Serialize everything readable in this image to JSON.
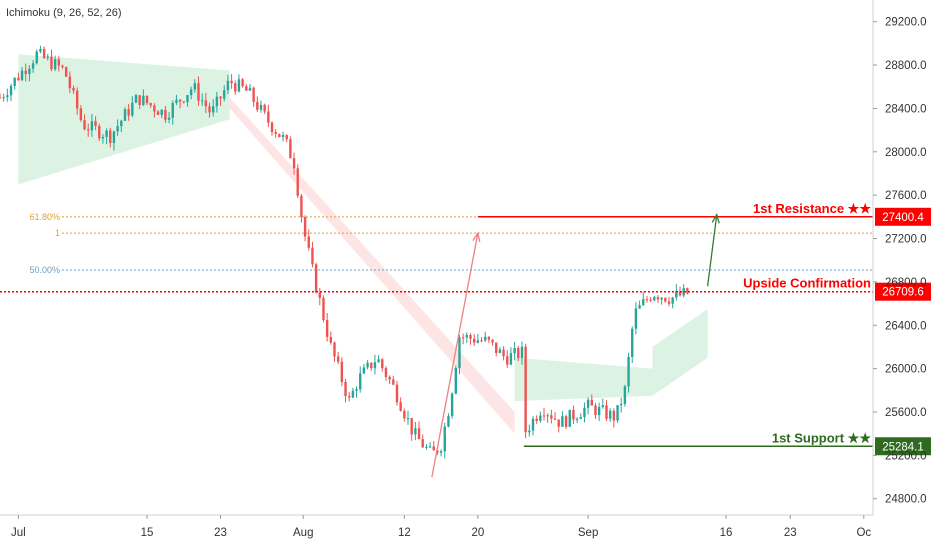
{
  "indicator": {
    "label": "Ichimoku (9, 26, 52, 26)"
  },
  "colors": {
    "up": "#26a69a",
    "down": "#ef5350",
    "resistance": "#ff0000",
    "support": "#2e6b1f",
    "cloud_bull": "#d6f0de",
    "cloud_bear": "#fde0e0",
    "fib": "#e0a030",
    "fib50": "#6aa0c8",
    "arrow_red": "#f08080",
    "arrow_green": "#2e7d32"
  },
  "chart_data": {
    "type": "candlestick",
    "y_axis": {
      "ylim": [
        24650,
        29400
      ],
      "ticks": [
        29200,
        28800,
        28400,
        28000,
        27600,
        27200,
        26800,
        26400,
        26000,
        25600,
        25200,
        24800
      ],
      "tick_labels": [
        "29200.0",
        "28800.0",
        "28400.0",
        "28000.0",
        "27600.0",
        "27200.0",
        "26800.0",
        "26400.0",
        "26000.0",
        "25600.0",
        "25200.0",
        "24800.0"
      ]
    },
    "x_axis": {
      "start": "2023-06-29",
      "end": "2023-10-02",
      "ticks": [
        {
          "date": "2023-07-01",
          "label": "Jul"
        },
        {
          "date": "2023-07-15",
          "label": "15"
        },
        {
          "date": "2023-07-23",
          "label": "23"
        },
        {
          "date": "2023-08-01",
          "label": "Aug"
        },
        {
          "date": "2023-08-12",
          "label": "12"
        },
        {
          "date": "2023-08-20",
          "label": "20"
        },
        {
          "date": "2023-09-01",
          "label": "Sep"
        },
        {
          "date": "2023-09-16",
          "label": "16"
        },
        {
          "date": "2023-09-23",
          "label": "23"
        },
        {
          "date": "2023-10-01",
          "label": "Oc"
        }
      ]
    },
    "price_path": [
      {
        "date": "2023-06-29",
        "price": 28500
      },
      {
        "date": "2023-07-03",
        "price": 28900
      },
      {
        "date": "2023-07-06",
        "price": 28750
      },
      {
        "date": "2023-07-08",
        "price": 28250
      },
      {
        "date": "2023-07-11",
        "price": 28150
      },
      {
        "date": "2023-07-14",
        "price": 28500
      },
      {
        "date": "2023-07-17",
        "price": 28350
      },
      {
        "date": "2023-07-20",
        "price": 28600
      },
      {
        "date": "2023-07-22",
        "price": 28350
      },
      {
        "date": "2023-07-24",
        "price": 28650
      },
      {
        "date": "2023-07-26",
        "price": 28550
      },
      {
        "date": "2023-07-28",
        "price": 28300
      },
      {
        "date": "2023-07-30",
        "price": 28100
      },
      {
        "date": "2023-07-31",
        "price": 27900
      },
      {
        "date": "2023-08-01",
        "price": 27300
      },
      {
        "date": "2023-08-02",
        "price": 26900
      },
      {
        "date": "2023-08-04",
        "price": 26200
      },
      {
        "date": "2023-08-06",
        "price": 25700
      },
      {
        "date": "2023-08-07",
        "price": 25900
      },
      {
        "date": "2023-08-09",
        "price": 26100
      },
      {
        "date": "2023-08-11",
        "price": 25800
      },
      {
        "date": "2023-08-13",
        "price": 25400
      },
      {
        "date": "2023-08-15",
        "price": 25200
      },
      {
        "date": "2023-08-16",
        "price": 25300
      },
      {
        "date": "2023-08-17",
        "price": 25700
      },
      {
        "date": "2023-08-18",
        "price": 26300
      },
      {
        "date": "2023-08-21",
        "price": 26250
      },
      {
        "date": "2023-08-23",
        "price": 26100
      },
      {
        "date": "2023-08-25",
        "price": 26150
      },
      {
        "date": "2023-08-25",
        "price": 25400
      },
      {
        "date": "2023-08-27",
        "price": 25650
      },
      {
        "date": "2023-08-29",
        "price": 25500
      },
      {
        "date": "2023-09-01",
        "price": 25650
      },
      {
        "date": "2023-09-04",
        "price": 25550
      },
      {
        "date": "2023-09-05",
        "price": 25800
      },
      {
        "date": "2023-09-06",
        "price": 26500
      },
      {
        "date": "2023-09-08",
        "price": 26700
      },
      {
        "date": "2023-09-10",
        "price": 26650
      },
      {
        "date": "2023-09-12",
        "price": 26700
      }
    ],
    "ichimoku_cloud": [
      {
        "start": "2023-07-01",
        "end": "2023-07-24",
        "top": [
          28900,
          28750
        ],
        "bottom": [
          27700,
          28300
        ],
        "trend": "bull"
      },
      {
        "start": "2023-07-24",
        "end": "2023-08-24",
        "top": [
          28500,
          25600
        ],
        "bottom": [
          28400,
          25400
        ],
        "trend": "bear"
      },
      {
        "start": "2023-08-24",
        "end": "2023-09-08",
        "top": [
          26100,
          26000
        ],
        "bottom": [
          25700,
          25750
        ],
        "trend": "bull"
      },
      {
        "start": "2023-09-08",
        "end": "2023-09-14",
        "top": [
          26200,
          26550
        ],
        "bottom": [
          25750,
          26100
        ],
        "trend": "bull"
      }
    ],
    "levels": [
      {
        "name": "1st Resistance ★★",
        "price": 27400.4,
        "label": "27400.4",
        "color_key": "resistance",
        "start": "2023-08-20"
      },
      {
        "name": "Upside Confirmation",
        "price": 26709.6,
        "label": "26709.6",
        "color_key": "resistance",
        "start": "2023-06-29"
      },
      {
        "name": "1st Support ★★",
        "price": 25284.1,
        "label": "25284.1",
        "color_key": "support",
        "start": "2023-08-25"
      }
    ],
    "fibonacci": [
      {
        "label": "61.80%",
        "price": 27400
      },
      {
        "label": "1",
        "price": 27250
      },
      {
        "label": "50.00%",
        "price": 26910
      }
    ],
    "arrows": [
      {
        "from": {
          "date": "2023-08-15",
          "price": 25000
        },
        "to": {
          "date": "2023-08-20",
          "price": 27250
        },
        "color_key": "arrow_red"
      },
      {
        "from": {
          "date": "2023-09-14",
          "price": 26760
        },
        "to": {
          "date": "2023-09-15",
          "price": 27420
        },
        "color_key": "arrow_green"
      }
    ]
  }
}
